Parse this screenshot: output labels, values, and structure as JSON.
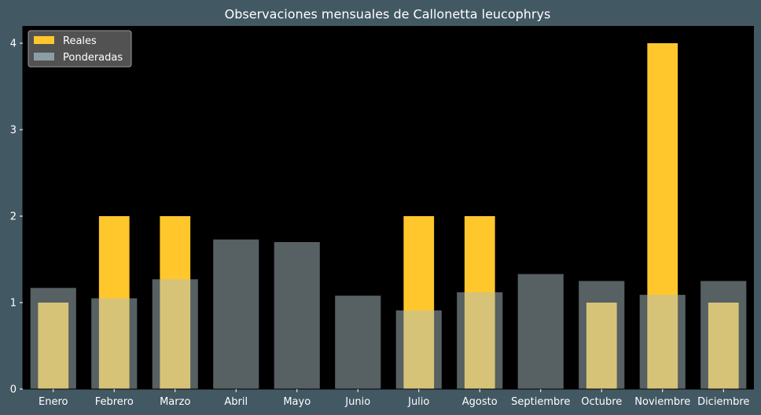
{
  "chart_data": {
    "type": "bar",
    "title": "Observaciones mensuales de Callonetta leucophrys",
    "xlabel": "",
    "ylabel": "",
    "categories": [
      "Enero",
      "Febrero",
      "Marzo",
      "Abril",
      "Mayo",
      "Junio",
      "Julio",
      "Agosto",
      "Septiembre",
      "Octubre",
      "Noviembre",
      "Diciembre"
    ],
    "series": [
      {
        "name": "Reales",
        "color": "#ffc72c",
        "values": [
          1,
          2,
          2,
          0,
          0,
          0,
          2,
          2,
          0,
          1,
          4,
          1
        ]
      },
      {
        "name": "Ponderadas",
        "color": "#aebfc4",
        "values": [
          1.17,
          1.05,
          1.27,
          1.73,
          1.7,
          1.08,
          0.91,
          1.12,
          1.33,
          1.25,
          1.09,
          1.25
        ]
      }
    ],
    "ylim": [
      0,
      4.2
    ],
    "yticks": [
      0,
      1,
      2,
      3,
      4
    ],
    "grid": false,
    "legend_position": "top-left",
    "colors": {
      "figure_background": "#425863",
      "plot_background": "#000000",
      "text": "#ffffff"
    }
  }
}
